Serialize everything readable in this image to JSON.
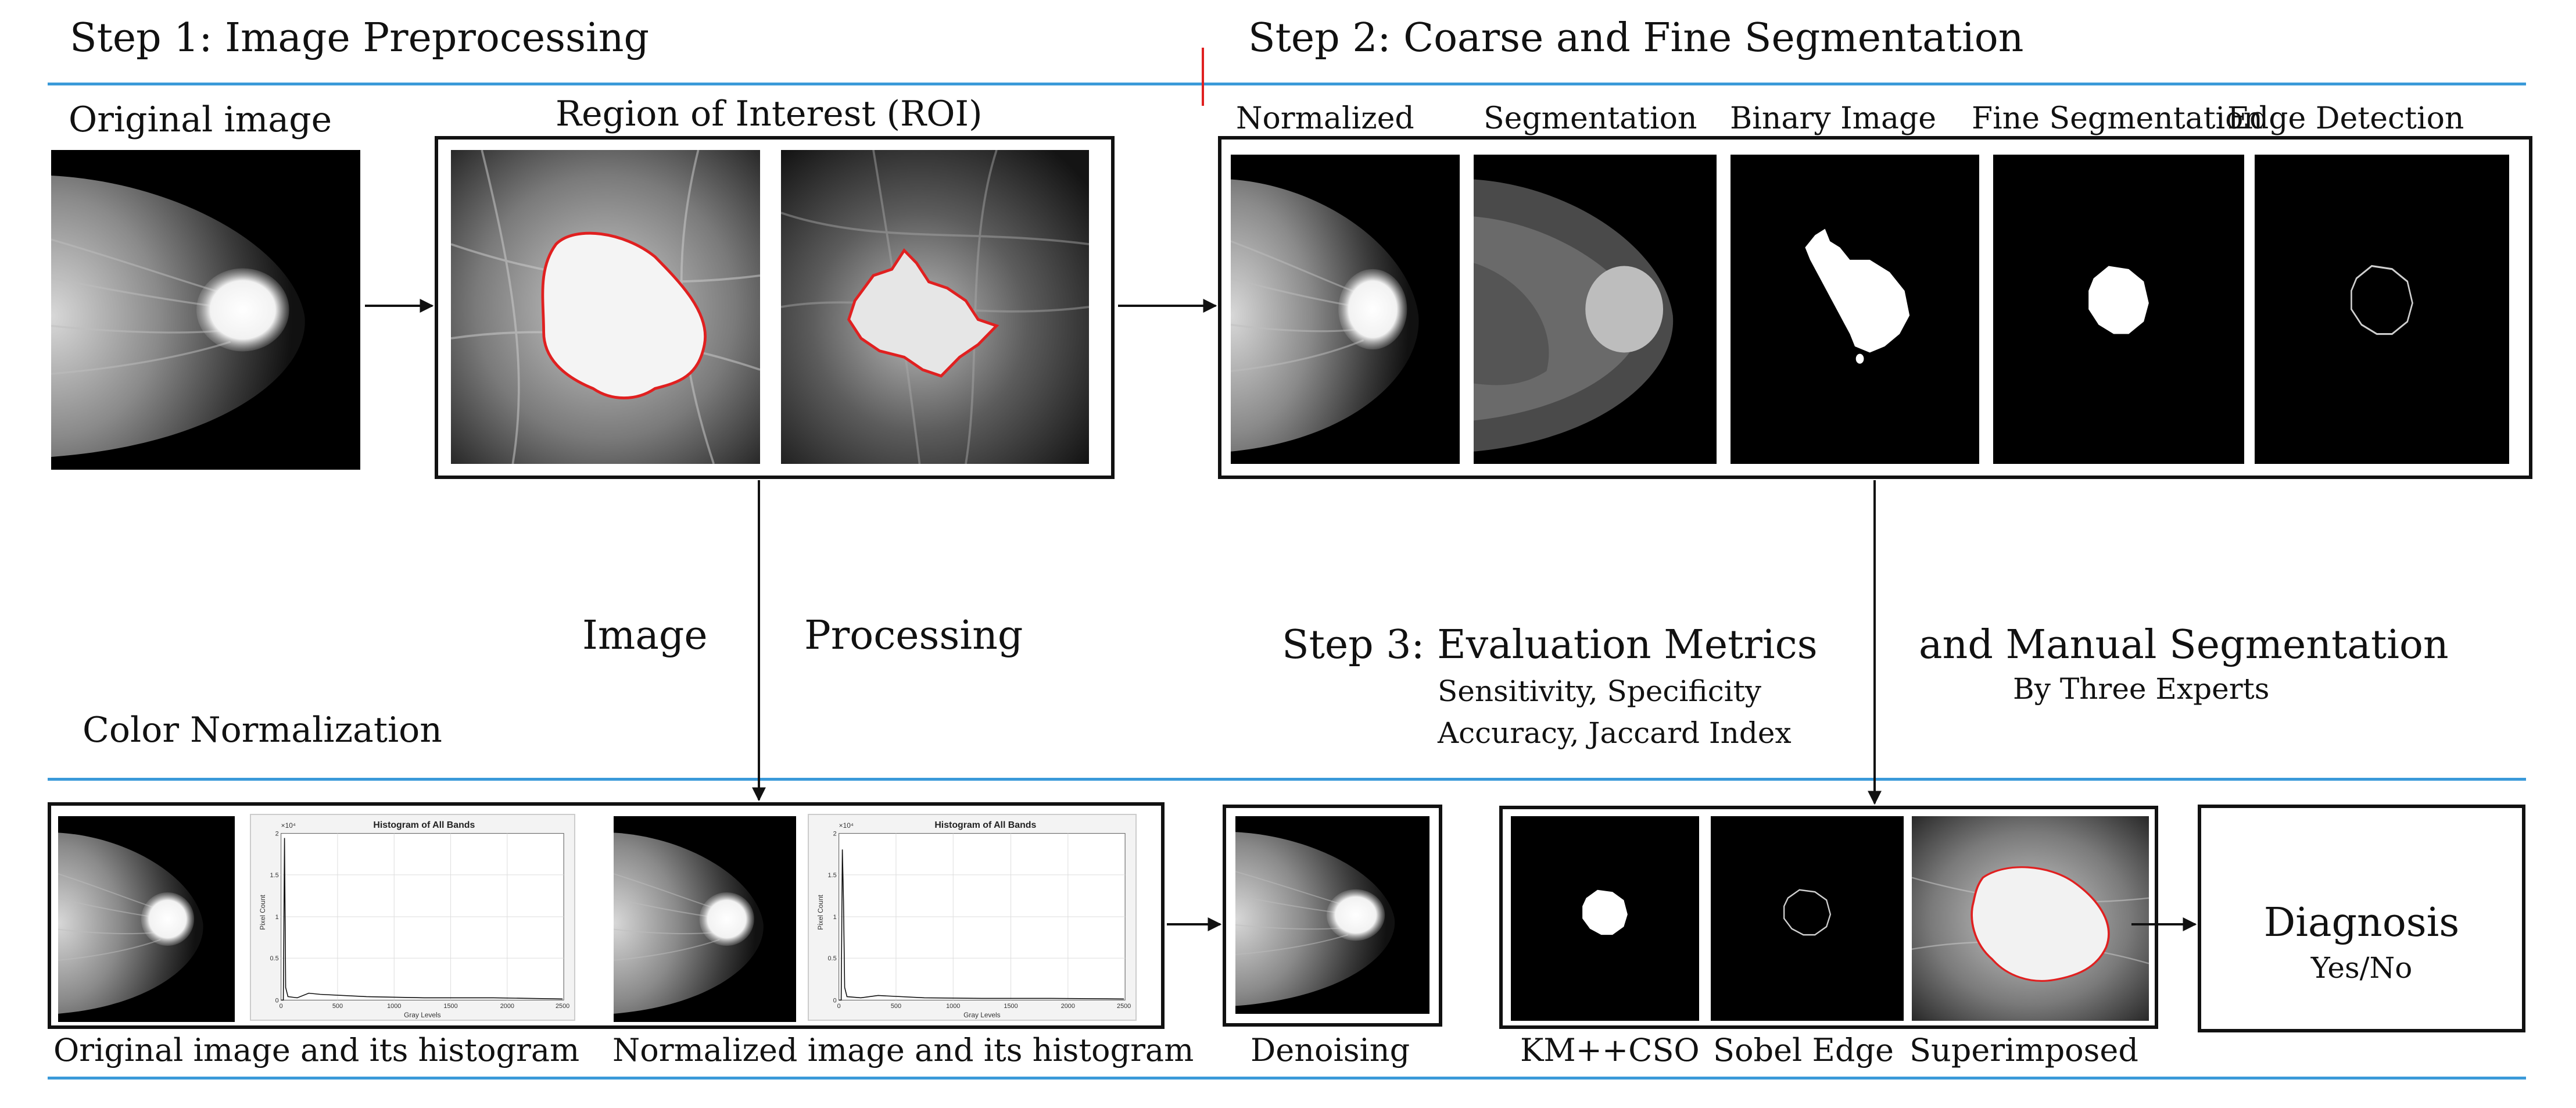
{
  "step1": {
    "title": "Step 1: Image Preprocessing"
  },
  "step2": {
    "title": "Step 2: Coarse and Fine Segmentation"
  },
  "step3": {
    "title": "Step 3: Evaluation Metrics",
    "metrics_line1": "Sensitivity, Specificity",
    "metrics_line2": "Accuracy, Jaccard Index"
  },
  "manual": {
    "title": "and Manual Segmentation",
    "subtitle": "By Three Experts"
  },
  "labels": {
    "original_image": "Original image",
    "roi": "Region of Interest (ROI)",
    "image_word": "Image",
    "processing_word": "Processing",
    "color_normalization": "Color Normalization"
  },
  "segmentation_panels": [
    "Normalized",
    "Segmentation",
    "Binary Image",
    "Fine Segmentation",
    "Edge Detection"
  ],
  "normalization_captions": {
    "original": "Original image and its histogram",
    "normalized": "Normalized image and its histogram"
  },
  "histograms": [
    {
      "title": "Histogram of All Bands",
      "ylabel": "Pixel Count",
      "xlabel": "Gray Levels",
      "scale": "×10⁴",
      "xticks": [
        "0",
        "500",
        "1000",
        "1500",
        "2000",
        "2500"
      ],
      "yticks": [
        "0",
        "0.5",
        "1",
        "1.5",
        "2"
      ]
    },
    {
      "title": "Histogram of All Bands",
      "ylabel": "Pixel Count",
      "xlabel": "Gray Levels",
      "scale": "×10⁴",
      "xticks": [
        "0",
        "500",
        "1000",
        "1500",
        "2000",
        "2500"
      ],
      "yticks": [
        "0",
        "0.5",
        "1",
        "1.5",
        "2"
      ]
    }
  ],
  "denoising": "Denoising",
  "results_captions": [
    "KM++CSO",
    "Sobel Edge",
    "Superimposed"
  ],
  "diagnosis": {
    "title": "Diagnosis",
    "subtitle": "Yes/No"
  },
  "colors": {
    "rule": "#3a9ad9",
    "contour": "#e02020",
    "frame": "#111111"
  }
}
